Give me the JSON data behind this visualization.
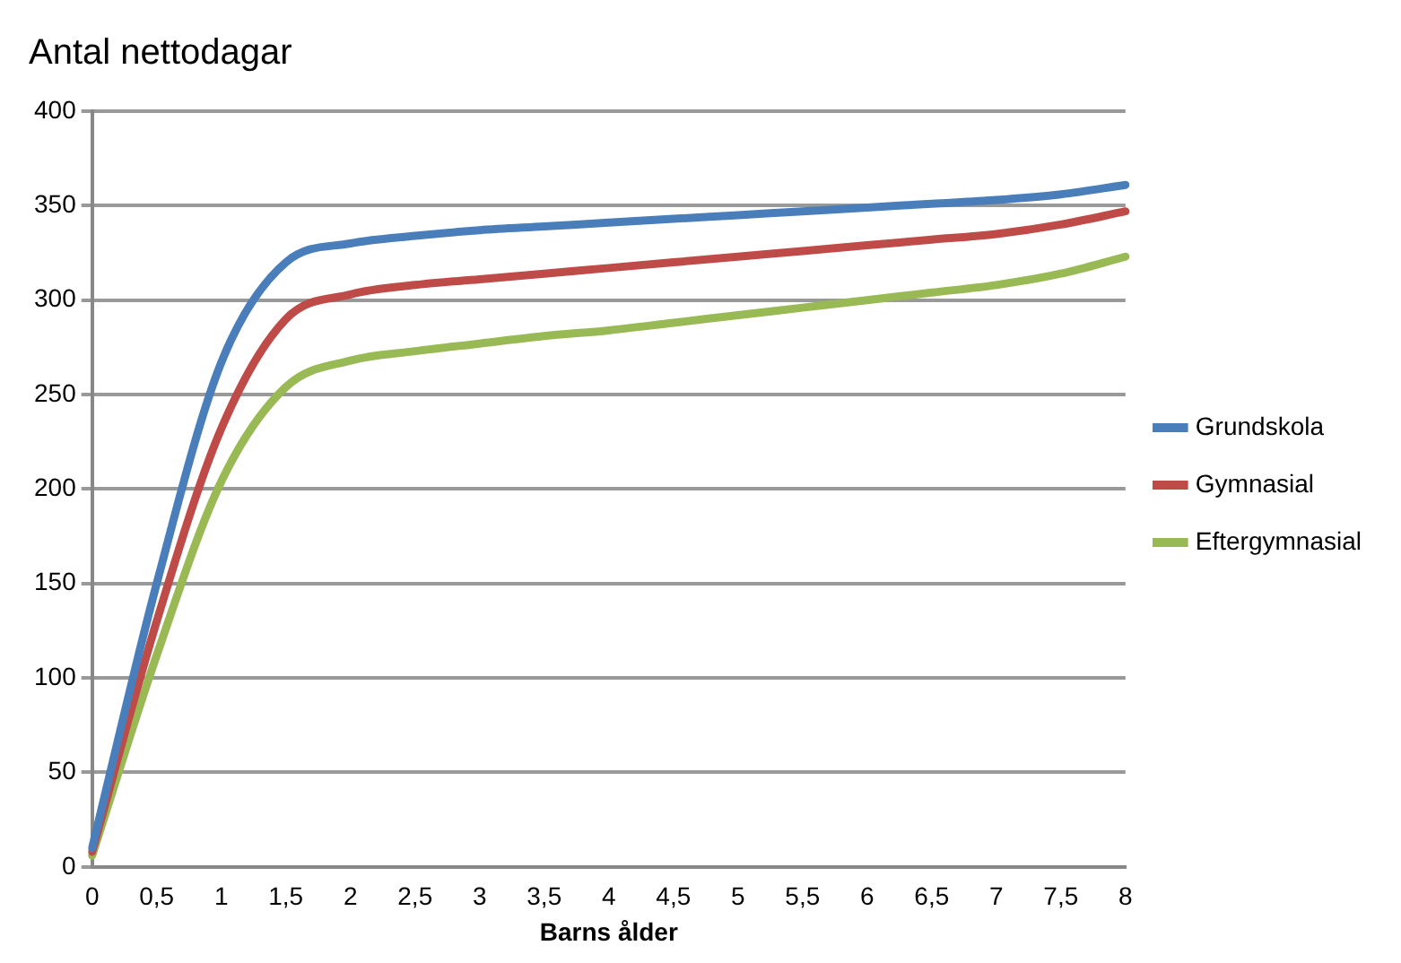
{
  "chart_data": {
    "type": "line",
    "title": "Antal nettodagar",
    "xlabel": "Barns ålder",
    "categories": [
      "0",
      "0,5",
      "1",
      "1,5",
      "2",
      "2,5",
      "3",
      "3,5",
      "4",
      "4,5",
      "5",
      "5,5",
      "6",
      "6,5",
      "7",
      "7,5",
      "8"
    ],
    "series": [
      {
        "name": "Grundskola",
        "color": "#4a7ebb",
        "values": [
          10,
          150,
          267,
          320,
          330,
          334,
          337,
          339,
          341,
          343,
          345,
          347,
          349,
          351,
          353,
          356,
          361
        ]
      },
      {
        "name": "Gymnasial",
        "color": "#be4b48",
        "values": [
          8,
          130,
          232,
          290,
          303,
          308,
          311,
          314,
          317,
          320,
          323,
          326,
          329,
          332,
          335,
          340,
          347
        ]
      },
      {
        "name": "Eftergymnasial",
        "color": "#98b954",
        "values": [
          6,
          112,
          204,
          254,
          268,
          273,
          277,
          281,
          284,
          288,
          292,
          296,
          300,
          304,
          308,
          314,
          323
        ]
      }
    ],
    "ylim": [
      0,
      400
    ],
    "yticks": [
      0,
      50,
      100,
      150,
      200,
      250,
      300,
      350,
      400
    ],
    "grid": "y",
    "legend": "right",
    "marker": "none",
    "line_style": "solid"
  }
}
